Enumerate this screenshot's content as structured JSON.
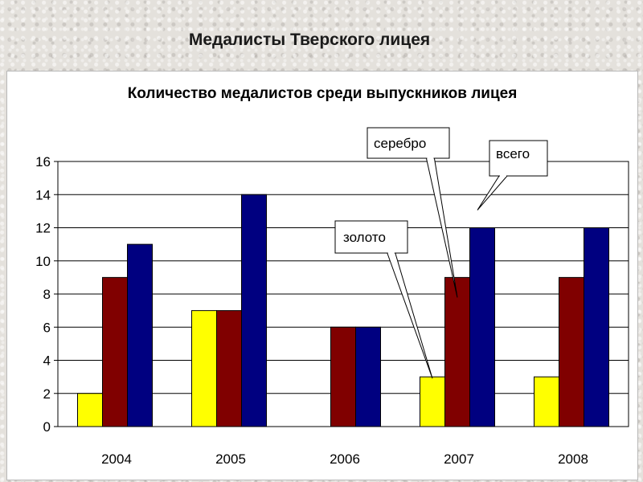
{
  "slide": {
    "title": "Медалисты Тверского лицея"
  },
  "chart_data": {
    "type": "bar",
    "title": "Количество медалистов среди выпускников лицея",
    "xlabel": "",
    "ylabel": "",
    "categories": [
      "2004",
      "2005",
      "2006",
      "2007",
      "2008"
    ],
    "series": [
      {
        "name": "золото",
        "values": [
          2,
          7,
          0,
          3,
          3
        ],
        "color": "#ffff00"
      },
      {
        "name": "серебро",
        "values": [
          9,
          7,
          6,
          9,
          9
        ],
        "color": "#800000"
      },
      {
        "name": "всего",
        "values": [
          11,
          14,
          6,
          12,
          12
        ],
        "color": "#000080"
      }
    ],
    "ylim": [
      0,
      16
    ],
    "yticks": [
      0,
      2,
      4,
      6,
      8,
      10,
      12,
      14,
      16
    ],
    "grid": true,
    "legend": "callouts"
  }
}
